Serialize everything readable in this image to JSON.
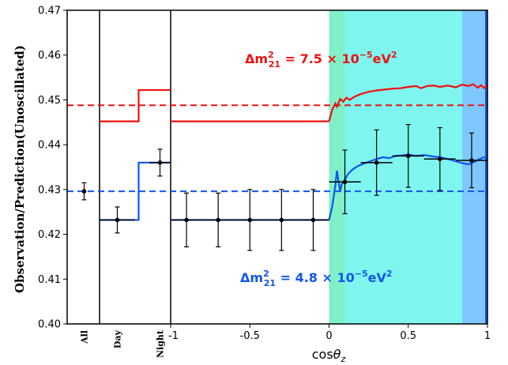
{
  "chart_data": {
    "type": "line",
    "title": "",
    "ylabel": "Observation/Prediction(Unoscillated)",
    "xlabel_main": "cos",
    "xlabel_sym": "θ",
    "xlabel_sub": "z",
    "ylim": [
      0.4,
      0.47
    ],
    "yticks": [
      "0.40",
      "0.41",
      "0.42",
      "0.43",
      "0.44",
      "0.45",
      "0.46",
      "0.47"
    ],
    "xlim": [
      -1,
      1
    ],
    "xticks": [
      "-1",
      "-0.5",
      "0",
      "0.5",
      "1"
    ],
    "categories": [
      "All",
      "Day",
      "Night"
    ],
    "colors": {
      "red": "#ee1111",
      "blue": "#1155ee",
      "band_green": "#7ff0c8",
      "band_cyan": "#7ff5f0",
      "band_lightblue": "#7ec8ff",
      "band_darkblue": "#1a50e8"
    },
    "annotations": {
      "red_label": {
        "prefix": "Δm",
        "sup": "2",
        "sub": "21",
        "rest": " = 7.5 × 10",
        "exp": "−5",
        "unit": "eV",
        "unit_sup": "2"
      },
      "blue_label": {
        "prefix": "Δm",
        "sup": "2",
        "sub": "21",
        "rest": " = 4.8 × 10",
        "exp": "−5",
        "unit": "eV",
        "unit_sup": "2"
      }
    },
    "bands": [
      {
        "from": 0.0,
        "to": 0.1,
        "color": "band_green"
      },
      {
        "from": 0.1,
        "to": 0.84,
        "color": "band_cyan"
      },
      {
        "from": 0.84,
        "to": 0.985,
        "color": "band_lightblue"
      },
      {
        "from": 0.985,
        "to": 1.0,
        "color": "band_darkblue"
      }
    ],
    "series": [
      {
        "color": "red",
        "style": "solid",
        "steps": [
          {
            "panel": "day",
            "from": 0,
            "to": 0.55,
            "y": 0.4452
          },
          {
            "panel": "day",
            "from": 0.55,
            "to": 1,
            "y": 0.4522
          },
          {
            "panel": "main",
            "from": -1,
            "to": 0,
            "y": 0.4452
          }
        ],
        "curve": [
          [
            0.0,
            0.4452
          ],
          [
            0.02,
            0.4478
          ],
          [
            0.04,
            0.4492
          ],
          [
            0.05,
            0.4485
          ],
          [
            0.07,
            0.4502
          ],
          [
            0.09,
            0.4496
          ],
          [
            0.11,
            0.4505
          ],
          [
            0.13,
            0.45
          ],
          [
            0.16,
            0.4507
          ],
          [
            0.2,
            0.4513
          ],
          [
            0.25,
            0.4518
          ],
          [
            0.3,
            0.4521
          ],
          [
            0.35,
            0.4523
          ],
          [
            0.4,
            0.4525
          ],
          [
            0.45,
            0.4526
          ],
          [
            0.5,
            0.4529
          ],
          [
            0.55,
            0.4531
          ],
          [
            0.58,
            0.4526
          ],
          [
            0.62,
            0.4531
          ],
          [
            0.66,
            0.4532
          ],
          [
            0.7,
            0.4529
          ],
          [
            0.75,
            0.4532
          ],
          [
            0.8,
            0.4528
          ],
          [
            0.84,
            0.4534
          ],
          [
            0.88,
            0.4531
          ],
          [
            0.91,
            0.4535
          ],
          [
            0.94,
            0.4527
          ],
          [
            0.96,
            0.4533
          ],
          [
            0.98,
            0.4526
          ],
          [
            1.0,
            0.4534
          ]
        ]
      },
      {
        "color": "blue",
        "style": "solid",
        "steps": [
          {
            "panel": "day",
            "from": 0,
            "to": 0.55,
            "y": 0.4232
          },
          {
            "panel": "day",
            "from": 0.55,
            "to": 1,
            "y": 0.436
          },
          {
            "panel": "main",
            "from": -1,
            "to": 0,
            "y": 0.4232
          }
        ],
        "curve": [
          [
            0.0,
            0.4232
          ],
          [
            0.02,
            0.4262
          ],
          [
            0.04,
            0.431
          ],
          [
            0.05,
            0.4342
          ],
          [
            0.06,
            0.4318
          ],
          [
            0.07,
            0.4295
          ],
          [
            0.08,
            0.4312
          ],
          [
            0.1,
            0.4322
          ],
          [
            0.12,
            0.4335
          ],
          [
            0.15,
            0.4345
          ],
          [
            0.18,
            0.4352
          ],
          [
            0.22,
            0.4358
          ],
          [
            0.26,
            0.4363
          ],
          [
            0.3,
            0.4368
          ],
          [
            0.34,
            0.4372
          ],
          [
            0.38,
            0.437
          ],
          [
            0.42,
            0.4375
          ],
          [
            0.46,
            0.4376
          ],
          [
            0.5,
            0.4378
          ],
          [
            0.55,
            0.4375
          ],
          [
            0.6,
            0.4377
          ],
          [
            0.65,
            0.4374
          ],
          [
            0.7,
            0.4372
          ],
          [
            0.75,
            0.4368
          ],
          [
            0.8,
            0.4363
          ],
          [
            0.84,
            0.4359
          ],
          [
            0.88,
            0.4356
          ],
          [
            0.92,
            0.4362
          ],
          [
            0.95,
            0.4368
          ],
          [
            0.98,
            0.4372
          ],
          [
            1.0,
            0.4369
          ]
        ]
      }
    ],
    "reference_lines": [
      {
        "y": 0.4488,
        "color": "red",
        "style": "dashed"
      },
      {
        "y": 0.4296,
        "color": "blue",
        "style": "dashed"
      }
    ],
    "data_points": [
      {
        "category": "All",
        "y": 0.4296,
        "yerr": 0.0019
      },
      {
        "category": "Day",
        "y": 0.4232,
        "yerr": 0.0029
      },
      {
        "category": "Night",
        "y": 0.436,
        "yerr": 0.003
      },
      {
        "x": -0.9,
        "xerr": 0.1,
        "y": 0.4232,
        "yerr": 0.006
      },
      {
        "x": -0.7,
        "xerr": 0.1,
        "y": 0.4232,
        "yerr": 0.006
      },
      {
        "x": -0.5,
        "xerr": 0.1,
        "y": 0.4232,
        "yerr": 0.0068
      },
      {
        "x": -0.3,
        "xerr": 0.1,
        "y": 0.4232,
        "yerr": 0.0068
      },
      {
        "x": -0.1,
        "xerr": 0.1,
        "y": 0.4232,
        "yerr": 0.0068
      },
      {
        "x": 0.1,
        "xerr": 0.1,
        "y": 0.4317,
        "yerr": 0.0071
      },
      {
        "x": 0.3,
        "xerr": 0.1,
        "y": 0.436,
        "yerr": 0.0073
      },
      {
        "x": 0.5,
        "xerr": 0.1,
        "y": 0.4375,
        "yerr": 0.007
      },
      {
        "x": 0.7,
        "xerr": 0.1,
        "y": 0.4368,
        "yerr": 0.007
      },
      {
        "x": 0.9,
        "xerr": 0.1,
        "y": 0.4365,
        "yerr": 0.0061
      }
    ]
  }
}
